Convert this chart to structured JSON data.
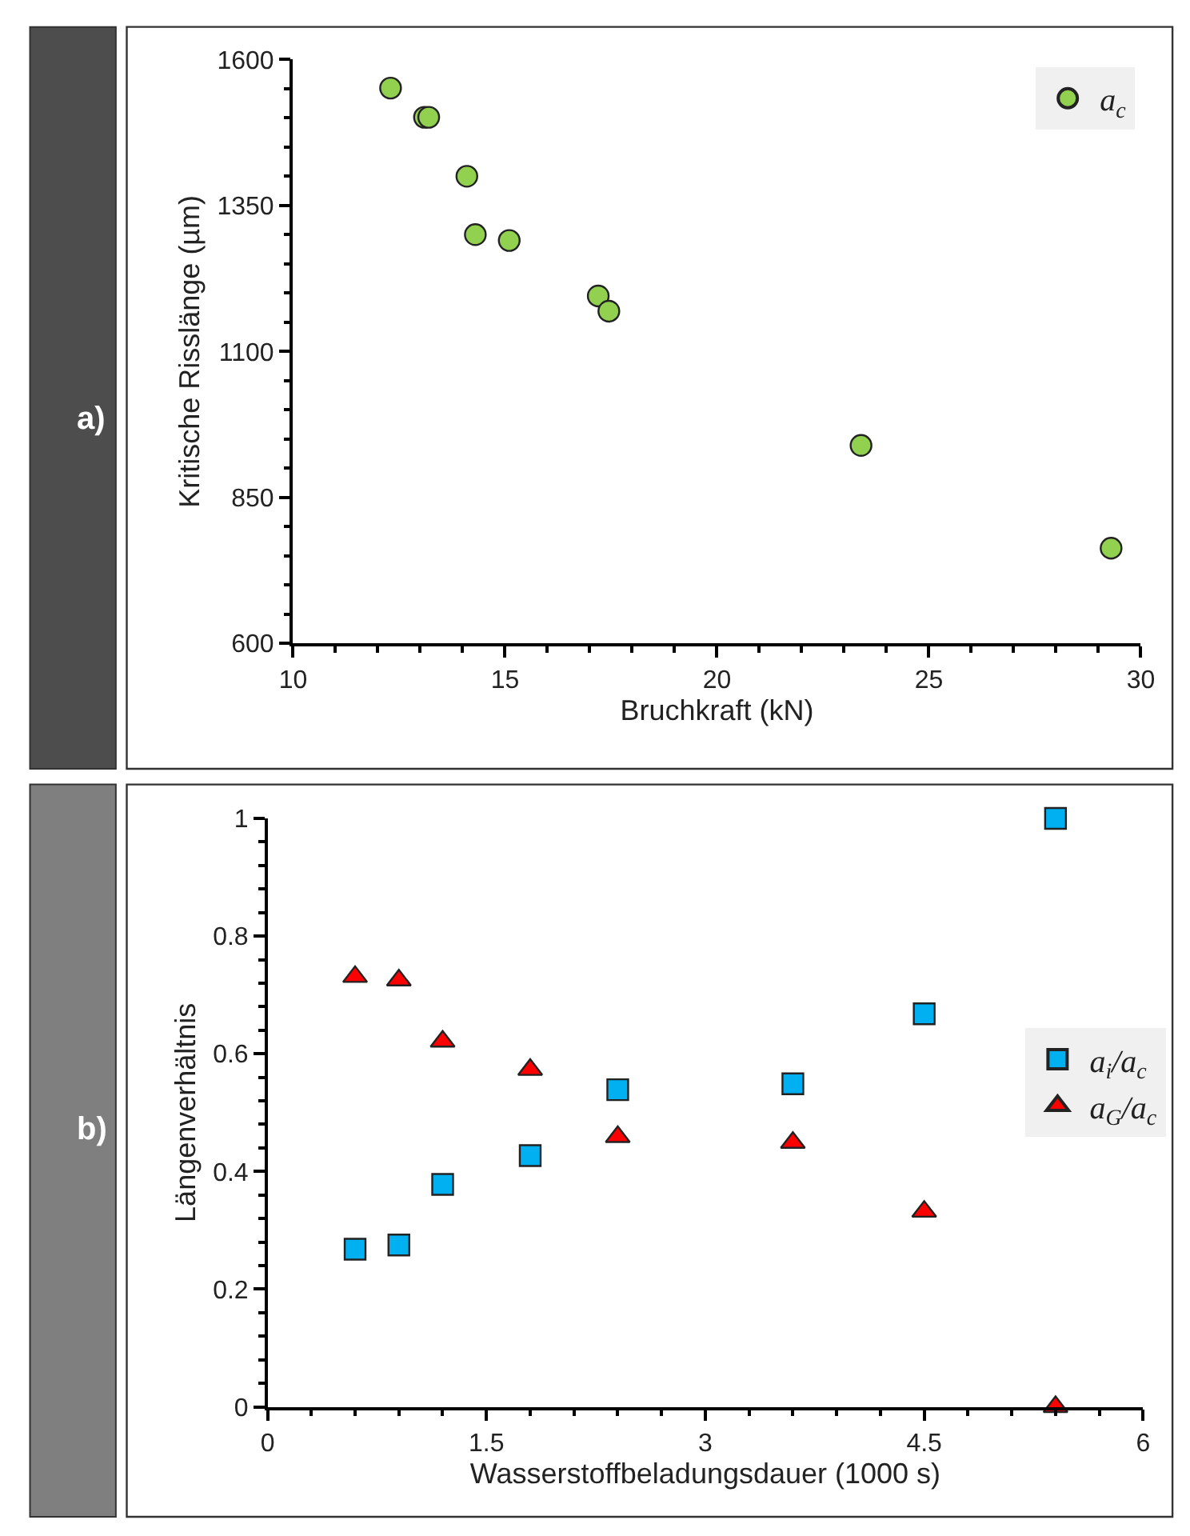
{
  "chart_data": [
    {
      "type": "scatter",
      "xlabel": "Bruchkraft (kN)",
      "ylabel": "Kritische Risslänge (µm)",
      "annotations": [
        "a)"
      ],
      "series": [
        {
          "name": "a$_{c}$",
          "color": "#92d050",
          "marker": "circle",
          "x": [
            12.3,
            13.1,
            13.2,
            14.1,
            14.3,
            15.1,
            17.2,
            17.45,
            23.4,
            29.3
          ],
          "values": [
            1551,
            1501,
            1501,
            1400,
            1300,
            1290,
            1195,
            1169,
            939,
            763
          ]
        }
      ],
      "xlim": [
        10,
        30
      ],
      "xticks": [
        10,
        15,
        20,
        25,
        30
      ],
      "ylim": [
        600,
        1600
      ],
      "yticks": [
        600,
        850,
        1100,
        1350,
        1600
      ],
      "legend": "top right"
    },
    {
      "type": "scatter",
      "xlabel": "Wasserstoffbeladungsdauer (1000 s)",
      "ylabel": "Längenverhältnis",
      "annotations": [
        "b)"
      ],
      "series": [
        {
          "name": "a$_{i}$/a$_{c}$",
          "color": "#00b0f0",
          "marker": "square",
          "x": [
            0.6,
            0.9,
            1.2,
            1.8,
            2.4,
            3.6,
            4.5,
            5.4
          ],
          "values": [
            0.268,
            0.275,
            0.378,
            0.427,
            0.539,
            0.549,
            0.668,
            1.0
          ]
        },
        {
          "name": "a$_{G}$/a$_{c}$",
          "color": "#ff0000",
          "marker": "triangle",
          "x": [
            0.6,
            0.9,
            1.2,
            1.8,
            2.4,
            3.6,
            4.5,
            5.4
          ],
          "values": [
            0.731,
            0.725,
            0.621,
            0.573,
            0.459,
            0.449,
            0.332,
            0
          ]
        }
      ],
      "xlim": [
        0,
        6
      ],
      "xticks": [
        0,
        1.5,
        3,
        4.5,
        6
      ],
      "ylim": [
        0,
        1
      ],
      "yticks": [
        0,
        0.2,
        0.4,
        0.6,
        0.8,
        1
      ],
      "legend": "right"
    }
  ]
}
